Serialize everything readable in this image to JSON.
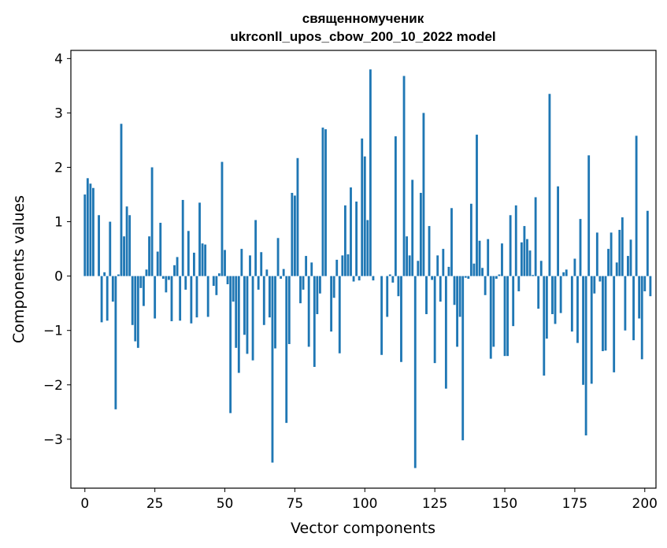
{
  "chart_data": {
    "type": "bar",
    "title": "священномученик",
    "subtitle": "ukrconll_upos_cbow_200_10_2022 model",
    "xlabel": "Vector components",
    "ylabel": "Components values",
    "xlim": [
      -5,
      204
    ],
    "ylim": [
      -3.9,
      4.15
    ],
    "xticks": [
      0,
      25,
      50,
      75,
      100,
      125,
      150,
      175,
      200
    ],
    "yticks": [
      -3,
      -2,
      -1,
      0,
      1,
      2,
      3,
      4
    ],
    "grid": false,
    "color": "#1f77b4",
    "x_start": 0,
    "values": [
      1.5,
      1.8,
      1.7,
      1.62,
      0.0,
      1.12,
      -0.85,
      0.07,
      -0.82,
      1.0,
      -0.47,
      -2.45,
      0.03,
      2.8,
      0.73,
      1.28,
      1.12,
      -0.9,
      -1.2,
      -1.32,
      -0.22,
      -0.55,
      0.12,
      0.73,
      2.0,
      -0.78,
      0.45,
      0.98,
      -0.05,
      -0.3,
      -0.07,
      -0.83,
      0.2,
      0.35,
      -0.82,
      1.4,
      -0.25,
      0.83,
      -0.87,
      0.43,
      -0.76,
      1.35,
      0.6,
      0.58,
      -0.75,
      0.0,
      -0.18,
      -0.35,
      0.05,
      2.1,
      0.48,
      -0.15,
      -2.52,
      -0.47,
      -1.32,
      -1.78,
      0.5,
      -1.08,
      -1.43,
      0.38,
      -1.55,
      1.03,
      -0.25,
      0.44,
      -0.9,
      0.12,
      -0.76,
      -3.43,
      -1.33,
      0.7,
      -0.05,
      0.13,
      -2.7,
      -1.25,
      1.53,
      1.48,
      2.17,
      -0.5,
      -0.25,
      0.37,
      -1.3,
      0.25,
      -1.67,
      -0.7,
      -0.32,
      2.73,
      2.7,
      0.0,
      -1.02,
      -0.4,
      0.3,
      -1.42,
      0.38,
      1.3,
      0.4,
      1.63,
      -0.1,
      1.37,
      -0.08,
      2.53,
      2.2,
      1.03,
      3.8,
      -0.08,
      0.0,
      0.0,
      -1.45,
      0.0,
      -0.75,
      0.03,
      -0.12,
      2.57,
      -0.37,
      -1.58,
      3.68,
      0.73,
      0.38,
      1.77,
      -3.53,
      0.28,
      1.53,
      3.0,
      -0.7,
      0.92,
      -0.07,
      -1.6,
      0.38,
      -0.47,
      0.5,
      -2.07,
      0.17,
      1.25,
      -0.53,
      -1.3,
      -0.75,
      -3.02,
      -0.03,
      -0.05,
      1.33,
      0.23,
      2.6,
      0.65,
      0.15,
      -0.35,
      0.68,
      -1.52,
      -1.3,
      -0.05,
      0.03,
      0.6,
      -1.47,
      -1.47,
      1.12,
      -0.92,
      1.3,
      -0.28,
      0.62,
      0.92,
      0.68,
      0.47,
      0.02,
      1.45,
      -0.6,
      0.28,
      -1.83,
      -1.15,
      3.35,
      -0.7,
      -0.88,
      1.65,
      -0.68,
      0.07,
      0.12,
      0.0,
      -1.02,
      0.32,
      -1.23,
      1.05,
      -2.0,
      -2.93,
      2.22,
      -1.98,
      -0.32,
      0.8,
      -0.1,
      -1.38,
      -1.37,
      0.5,
      0.8,
      -1.77,
      0.25,
      0.85,
      1.08,
      -1.0,
      0.37,
      0.67,
      -1.18,
      2.58,
      -0.78,
      -1.53,
      -0.28,
      1.2,
      -0.37
    ]
  }
}
